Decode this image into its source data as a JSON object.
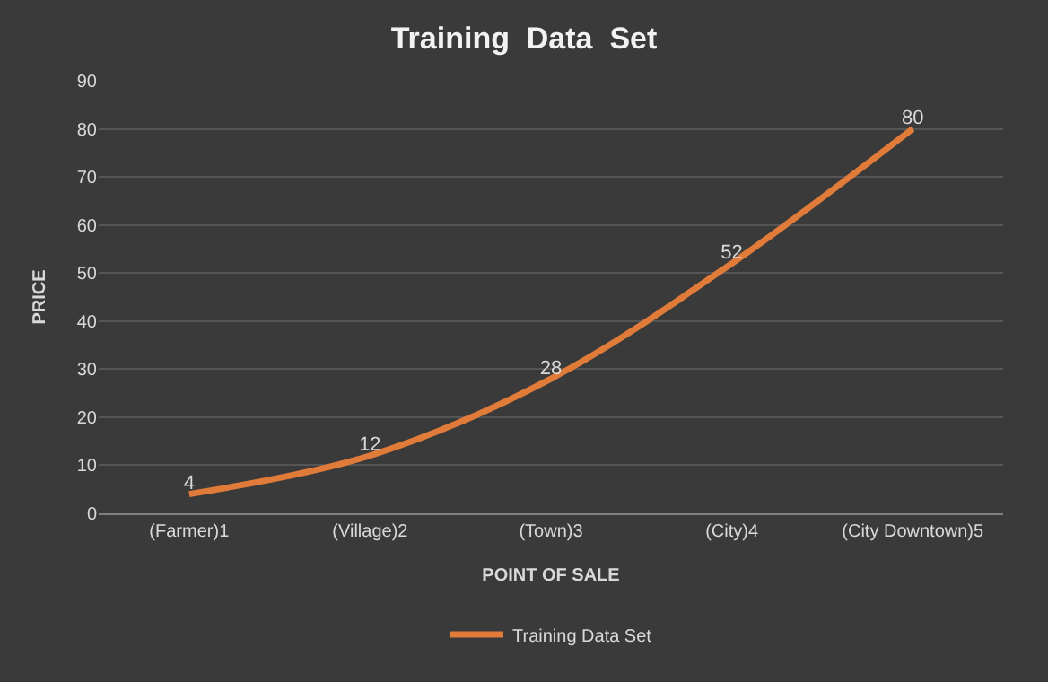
{
  "chart_data": {
    "type": "line",
    "title": "Training  Data  Set",
    "xlabel": "POINT OF SALE",
    "ylabel": "PRICE",
    "categories": [
      "(Farmer)1",
      "(Village)2",
      "(Town)3",
      "(City)4",
      "(City Downtown)5"
    ],
    "series": [
      {
        "name": "Training Data Set",
        "color": "#e07b39",
        "values": [
          4,
          12,
          28,
          52,
          80
        ]
      }
    ],
    "ylim": [
      0,
      90
    ],
    "yticks": [
      0,
      10,
      20,
      30,
      40,
      50,
      60,
      70,
      80,
      90
    ],
    "grid": "y",
    "legend": "bottom",
    "data_labels": true,
    "marker": "none",
    "line_style": "solid"
  }
}
